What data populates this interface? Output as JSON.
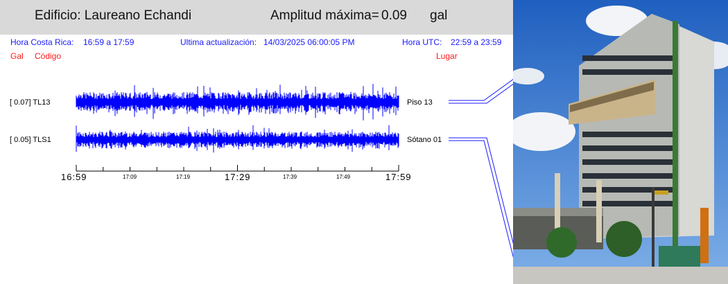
{
  "header": {
    "building": "Edificio: Laureano Echandi",
    "amplitude_label": "Amplitud máxima=",
    "amplitude_value": "0.09",
    "amplitude_unit": "gal"
  },
  "info": {
    "cr_label": "Hora Costa Rica:",
    "cr_range": "16:59 a 17:59",
    "update_label": "Ultima actualización:",
    "update_value": "14/03/2025 06:00:05 PM",
    "utc_label": "Hora UTC:",
    "utc_range": "22:59 a 23:59"
  },
  "columns": {
    "gal": "Gal",
    "code": "Código",
    "place": "Lugar"
  },
  "traces": [
    {
      "label": "[   0.07] TL13",
      "location": "Piso 13",
      "peak": 0.07
    },
    {
      "label": "[   0.05] TLS1",
      "location": "Sótano 01",
      "peak": 0.05
    }
  ],
  "time_axis": {
    "major": [
      "16:59",
      "17:29",
      "17:59"
    ],
    "minor": [
      "17:09",
      "17:19",
      "17:39",
      "17:49"
    ]
  },
  "colors": {
    "trace": "#0000ff",
    "header_bg": "#d9d9d9",
    "info": "#1a1aff",
    "accent_red": "#ff1a1a"
  }
}
